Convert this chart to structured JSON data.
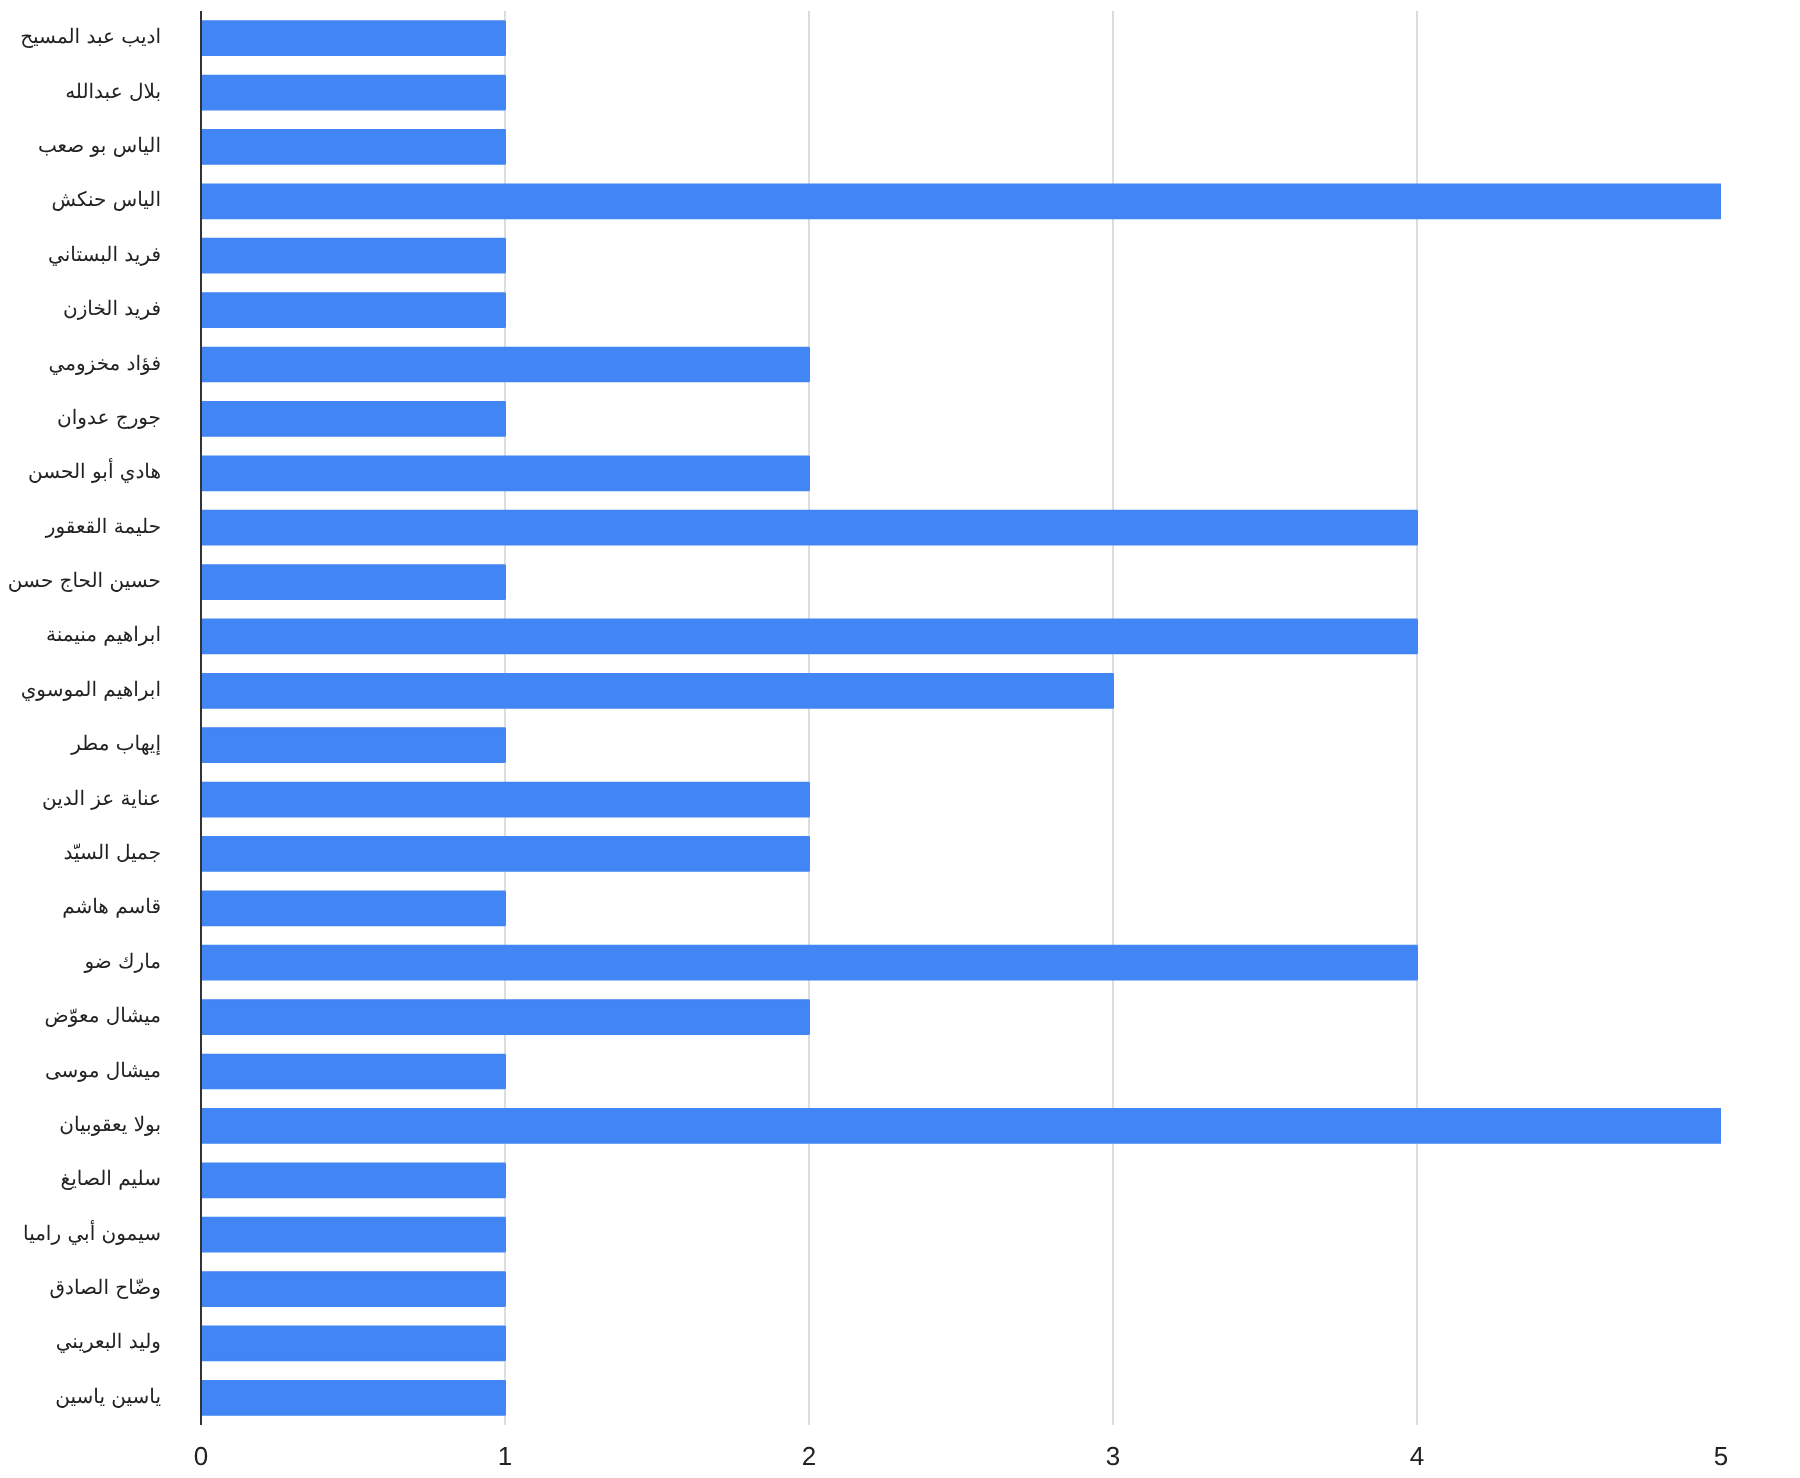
{
  "chart_data": {
    "type": "bar",
    "orientation": "horizontal",
    "categories": [
      "اديب عبد المسيح",
      "بلال عبدالله",
      "الياس بو صعب",
      "الياس حنكش",
      "فريد البستاني",
      "فريد الخازن",
      "فؤاد مخزومي",
      "جورج عدوان",
      "هادي أبو الحسن",
      "حليمة القعقور",
      "حسين الحاج حسن",
      "ابراهيم منيمنة",
      "ابراهيم الموسوي",
      "إيهاب مطر",
      "عناية عز الدين",
      "جميل السيّد",
      "قاسم هاشم",
      "مارك ضو",
      "ميشال معوّض",
      "ميشال موسى",
      "بولا يعقوبيان",
      "سليم الصايغ",
      "سيمون أبي راميا",
      "وضّاح الصادق",
      "وليد البعريني",
      "ياسين ياسين"
    ],
    "values": [
      1,
      1,
      1,
      5,
      1,
      1,
      2,
      1,
      2,
      4,
      1,
      4,
      3,
      1,
      2,
      2,
      1,
      4,
      2,
      1,
      5,
      1,
      1,
      1,
      1,
      1
    ],
    "color": "#4285f4",
    "xlim": [
      0,
      5
    ],
    "xticks": [
      0,
      1,
      2,
      3,
      4,
      5
    ],
    "grid": "x"
  }
}
